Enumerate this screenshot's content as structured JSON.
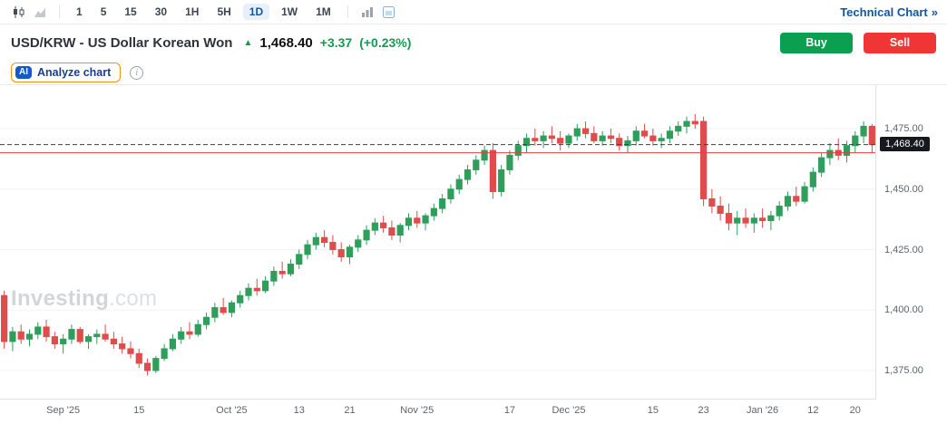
{
  "toolbar": {
    "timeframes": [
      "1",
      "5",
      "15",
      "30",
      "1H",
      "5H",
      "1D",
      "1W",
      "1M"
    ],
    "active_timeframe": "1D",
    "technical_chart_label": "Technical Chart",
    "technical_chart_arrow": "»"
  },
  "header": {
    "title": "USD/KRW - US Dollar Korean Won",
    "direction_arrow": "▲",
    "price": "1,468.40",
    "change": "+3.37",
    "change_percent": "(+0.23%)",
    "buy_label": "Buy",
    "sell_label": "Sell",
    "analyze_badge": "AI",
    "analyze_label": "Analyze chart"
  },
  "icons": {
    "info": "i"
  },
  "watermark": {
    "name": "Investing",
    "suffix": ".com"
  },
  "colors": {
    "up": "#2e9e5b",
    "down": "#e04b4b",
    "accent_blue": "#1256a0",
    "buy_green": "#0ba04f",
    "sell_red": "#f03535",
    "change_green": "#0f9d4f",
    "ref_line": "#e0403f",
    "last_price_line": "#3c4043"
  },
  "chart_data": {
    "type": "candlestick",
    "symbol": "USD/KRW",
    "interval": "1D",
    "y_domain": [
      1363,
      1493
    ],
    "last_price": 1468.4,
    "last_price_label": "1,468.40",
    "reference_line": 1465.03,
    "y_ticks": [
      {
        "value": 1475,
        "label": "1,475.00"
      },
      {
        "value": 1450,
        "label": "1,450.00"
      },
      {
        "value": 1425,
        "label": "1,425.00"
      },
      {
        "value": 1400,
        "label": "1,400.00"
      },
      {
        "value": 1375,
        "label": "1,375.00"
      }
    ],
    "x_ticks": [
      {
        "i": 7,
        "label": "Sep '25"
      },
      {
        "i": 16,
        "label": "15"
      },
      {
        "i": 27,
        "label": "Oct '25"
      },
      {
        "i": 35,
        "label": "13"
      },
      {
        "i": 41,
        "label": "21"
      },
      {
        "i": 49,
        "label": "Nov '25"
      },
      {
        "i": 60,
        "label": "17"
      },
      {
        "i": 67,
        "label": "Dec '25"
      },
      {
        "i": 77,
        "label": "15"
      },
      {
        "i": 83,
        "label": "23"
      },
      {
        "i": 90,
        "label": "Jan '26"
      },
      {
        "i": 96,
        "label": "12"
      },
      {
        "i": 101,
        "label": "20"
      }
    ],
    "candles": [
      [
        1406,
        1408,
        1384,
        1387
      ],
      [
        1387,
        1393,
        1383,
        1391
      ],
      [
        1391,
        1394,
        1386,
        1388
      ],
      [
        1388,
        1392,
        1385,
        1390
      ],
      [
        1390,
        1395,
        1388,
        1393
      ],
      [
        1393,
        1396,
        1387,
        1389
      ],
      [
        1389,
        1391,
        1384,
        1386
      ],
      [
        1386,
        1390,
        1382,
        1388
      ],
      [
        1388,
        1394,
        1386,
        1392
      ],
      [
        1392,
        1393,
        1386,
        1387
      ],
      [
        1387,
        1390,
        1384,
        1389
      ],
      [
        1389,
        1392,
        1386,
        1390
      ],
      [
        1390,
        1394,
        1387,
        1388
      ],
      [
        1388,
        1391,
        1384,
        1386
      ],
      [
        1386,
        1389,
        1382,
        1384
      ],
      [
        1384,
        1387,
        1380,
        1382
      ],
      [
        1382,
        1384,
        1376,
        1378
      ],
      [
        1378,
        1380,
        1373,
        1375
      ],
      [
        1375,
        1381,
        1374,
        1380
      ],
      [
        1380,
        1386,
        1379,
        1384
      ],
      [
        1384,
        1390,
        1383,
        1388
      ],
      [
        1388,
        1393,
        1386,
        1391
      ],
      [
        1391,
        1395,
        1388,
        1390
      ],
      [
        1390,
        1396,
        1389,
        1394
      ],
      [
        1394,
        1399,
        1392,
        1397
      ],
      [
        1397,
        1403,
        1395,
        1401
      ],
      [
        1401,
        1405,
        1398,
        1399
      ],
      [
        1399,
        1404,
        1397,
        1403
      ],
      [
        1403,
        1408,
        1401,
        1406
      ],
      [
        1406,
        1411,
        1404,
        1409
      ],
      [
        1409,
        1413,
        1406,
        1408
      ],
      [
        1408,
        1414,
        1407,
        1412
      ],
      [
        1412,
        1418,
        1410,
        1416
      ],
      [
        1416,
        1420,
        1413,
        1415
      ],
      [
        1415,
        1421,
        1414,
        1419
      ],
      [
        1419,
        1425,
        1417,
        1423
      ],
      [
        1423,
        1429,
        1421,
        1427
      ],
      [
        1427,
        1432,
        1425,
        1430
      ],
      [
        1430,
        1433,
        1426,
        1428
      ],
      [
        1428,
        1431,
        1423,
        1425
      ],
      [
        1425,
        1428,
        1420,
        1422
      ],
      [
        1422,
        1427,
        1419,
        1426
      ],
      [
        1426,
        1431,
        1424,
        1429
      ],
      [
        1429,
        1435,
        1427,
        1433
      ],
      [
        1433,
        1438,
        1431,
        1436
      ],
      [
        1436,
        1439,
        1432,
        1434
      ],
      [
        1434,
        1437,
        1429,
        1431
      ],
      [
        1431,
        1436,
        1428,
        1435
      ],
      [
        1435,
        1440,
        1433,
        1438
      ],
      [
        1438,
        1441,
        1434,
        1436
      ],
      [
        1436,
        1440,
        1433,
        1439
      ],
      [
        1439,
        1444,
        1437,
        1442
      ],
      [
        1442,
        1448,
        1440,
        1446
      ],
      [
        1446,
        1452,
        1444,
        1450
      ],
      [
        1450,
        1456,
        1448,
        1454
      ],
      [
        1454,
        1460,
        1452,
        1458
      ],
      [
        1458,
        1464,
        1456,
        1462
      ],
      [
        1462,
        1468,
        1460,
        1466
      ],
      [
        1466,
        1469,
        1446,
        1449
      ],
      [
        1449,
        1460,
        1447,
        1458
      ],
      [
        1458,
        1466,
        1456,
        1464
      ],
      [
        1464,
        1470,
        1462,
        1468
      ],
      [
        1468,
        1473,
        1465,
        1471
      ],
      [
        1471,
        1475,
        1468,
        1470
      ],
      [
        1470,
        1474,
        1467,
        1472
      ],
      [
        1472,
        1476,
        1469,
        1471
      ],
      [
        1471,
        1474,
        1466,
        1469
      ],
      [
        1469,
        1473,
        1467,
        1472
      ],
      [
        1472,
        1477,
        1470,
        1475
      ],
      [
        1475,
        1478,
        1471,
        1473
      ],
      [
        1473,
        1476,
        1469,
        1470
      ],
      [
        1470,
        1474,
        1468,
        1472
      ],
      [
        1472,
        1475,
        1469,
        1471
      ],
      [
        1471,
        1473,
        1466,
        1468
      ],
      [
        1468,
        1472,
        1465,
        1470
      ],
      [
        1470,
        1476,
        1468,
        1474
      ],
      [
        1474,
        1477,
        1471,
        1472
      ],
      [
        1472,
        1475,
        1468,
        1470
      ],
      [
        1470,
        1473,
        1467,
        1471
      ],
      [
        1471,
        1476,
        1469,
        1474
      ],
      [
        1474,
        1478,
        1472,
        1476
      ],
      [
        1476,
        1480,
        1473,
        1478
      ],
      [
        1478,
        1481,
        1475,
        1477
      ],
      [
        1478,
        1480,
        1443,
        1446
      ],
      [
        1446,
        1450,
        1440,
        1443
      ],
      [
        1443,
        1447,
        1437,
        1440
      ],
      [
        1440,
        1444,
        1433,
        1436
      ],
      [
        1436,
        1441,
        1431,
        1438
      ],
      [
        1438,
        1442,
        1434,
        1436
      ],
      [
        1436,
        1440,
        1432,
        1438
      ],
      [
        1438,
        1442,
        1434,
        1437
      ],
      [
        1437,
        1441,
        1433,
        1439
      ],
      [
        1439,
        1445,
        1437,
        1443
      ],
      [
        1443,
        1449,
        1441,
        1447
      ],
      [
        1447,
        1451,
        1443,
        1445
      ],
      [
        1445,
        1453,
        1444,
        1451
      ],
      [
        1451,
        1459,
        1449,
        1457
      ],
      [
        1457,
        1465,
        1455,
        1463
      ],
      [
        1463,
        1469,
        1460,
        1466
      ],
      [
        1466,
        1471,
        1462,
        1464
      ],
      [
        1464,
        1470,
        1461,
        1468
      ],
      [
        1468,
        1474,
        1465,
        1472
      ],
      [
        1472,
        1478,
        1469,
        1476
      ],
      [
        1476,
        1477,
        1465,
        1468.4
      ]
    ]
  }
}
